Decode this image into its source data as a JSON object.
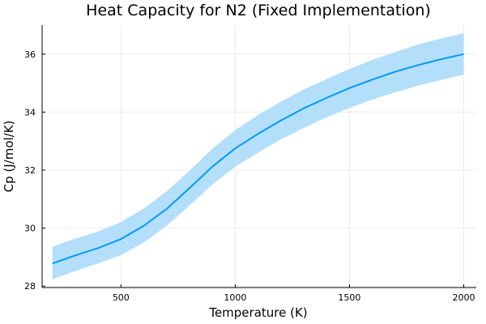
{
  "chart_data": {
    "type": "line",
    "title": "Heat Capacity for N2 (Fixed Implementation)",
    "xlabel": "Temperature (K)",
    "ylabel": "Cp (J/mol/K)",
    "xlim": [
      155,
      2055
    ],
    "ylim": [
      27.95,
      37.0
    ],
    "xticks": [
      500,
      1000,
      1500,
      2000
    ],
    "yticks": [
      28,
      30,
      32,
      34,
      36
    ],
    "grid": true,
    "legend": "none",
    "colors": {
      "line": "#009af9",
      "band": "#b4dffa",
      "grid": "#ebebeb",
      "axis": "#000000"
    },
    "series": [
      {
        "x": [
          200,
          300,
          400,
          500,
          600,
          700,
          800,
          900,
          1000,
          1100,
          1200,
          1300,
          1400,
          1500,
          1600,
          1700,
          1800,
          1900,
          2000
        ],
        "values": [
          28.78,
          29.06,
          29.31,
          29.62,
          30.08,
          30.66,
          31.38,
          32.12,
          32.75,
          33.25,
          33.71,
          34.13,
          34.49,
          34.83,
          35.12,
          35.39,
          35.62,
          35.82,
          36.0
        ],
        "lower": [
          28.24,
          28.52,
          28.78,
          29.07,
          29.5,
          30.08,
          30.78,
          31.5,
          32.12,
          32.6,
          33.06,
          33.45,
          33.82,
          34.14,
          34.43,
          34.68,
          34.91,
          35.11,
          35.29
        ],
        "upper": [
          29.36,
          29.64,
          29.88,
          30.21,
          30.68,
          31.27,
          31.98,
          32.74,
          33.38,
          33.9,
          34.36,
          34.78,
          35.14,
          35.49,
          35.8,
          36.07,
          36.33,
          36.54,
          36.72
        ]
      }
    ]
  }
}
